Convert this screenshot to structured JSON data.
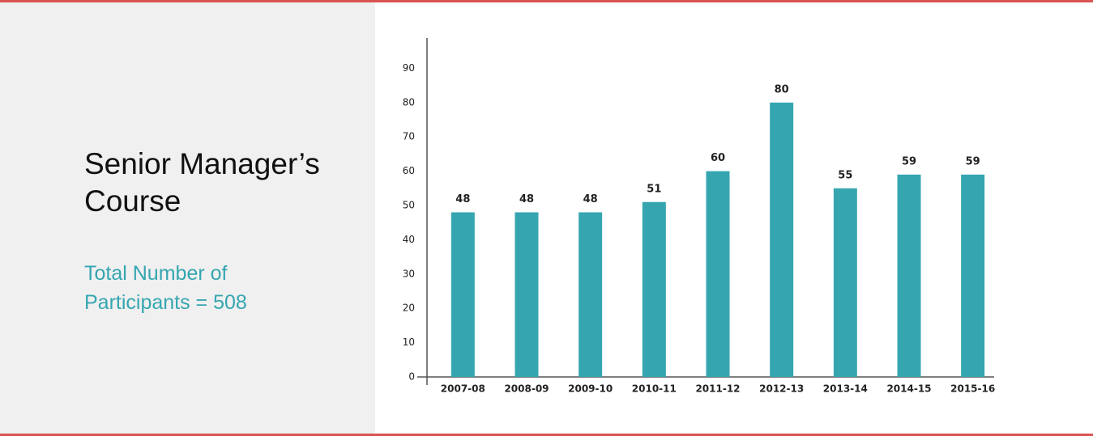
{
  "chart_data": {
    "type": "bar",
    "title": "Senior Manager’s Course",
    "subtitle": "Total Number of Participants = 508",
    "categories": [
      "2007-08",
      "2008-09",
      "2009-10",
      "2010-11",
      "2011-12",
      "2012-13",
      "2013-14",
      "2014-15",
      "2015-16"
    ],
    "values": [
      48,
      48,
      48,
      51,
      60,
      80,
      55,
      59,
      59
    ],
    "color": "#35a6b0",
    "ylim": [
      0,
      100
    ],
    "yticks": [
      0,
      10,
      20,
      30,
      40,
      50,
      60,
      70,
      80,
      90
    ],
    "grid": false
  }
}
